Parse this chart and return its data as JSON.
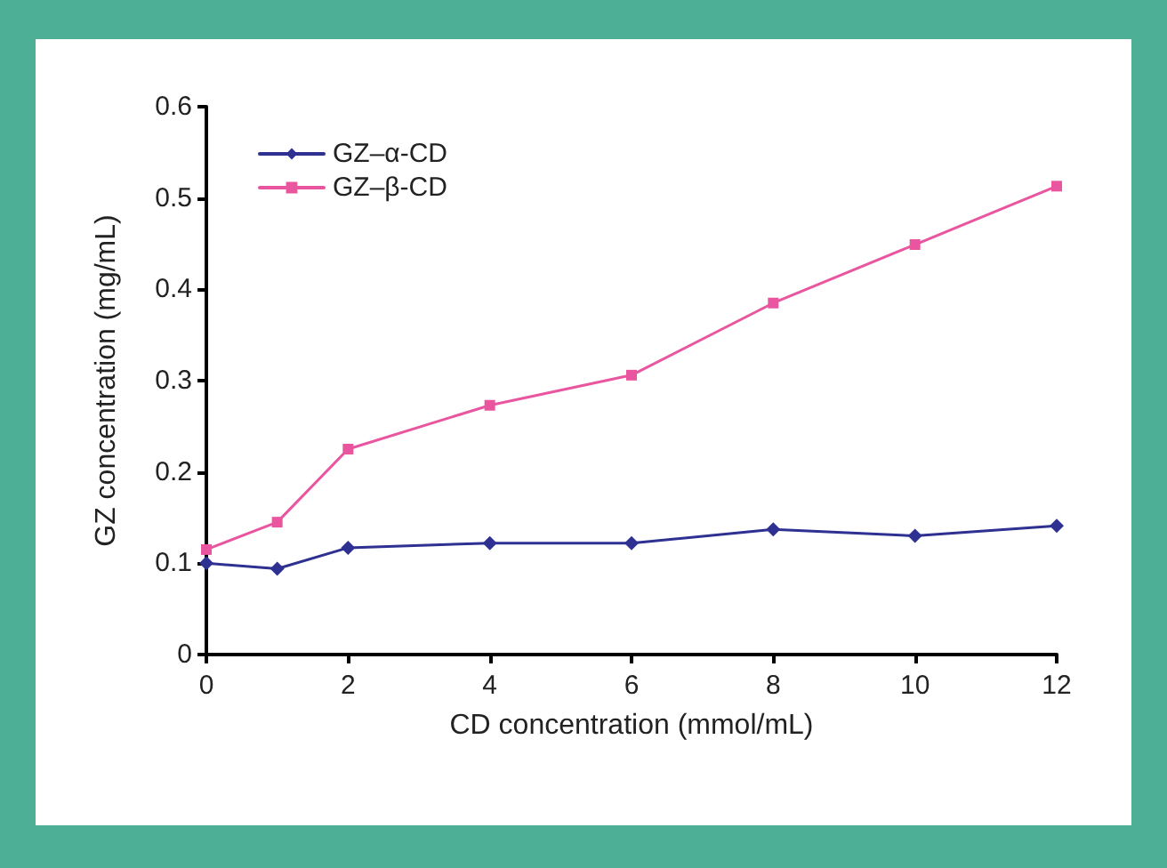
{
  "chart_data": {
    "type": "line",
    "xlabel": "CD concentration (mmol/mL)",
    "ylabel": "GZ concentration (mg/mL)",
    "x": [
      0,
      1,
      2,
      4,
      6,
      8,
      10,
      12
    ],
    "series": [
      {
        "name": "GZ–α-CD",
        "color": "#2e3192",
        "marker": "diamond",
        "values": [
          0.1,
          0.094,
          0.117,
          0.122,
          0.122,
          0.137,
          0.13,
          0.141
        ]
      },
      {
        "name": "GZ–β-CD",
        "color": "#e9559f",
        "marker": "square",
        "values": [
          0.115,
          0.145,
          0.225,
          0.273,
          0.306,
          0.385,
          0.449,
          0.513
        ]
      }
    ],
    "xlim": [
      0,
      12
    ],
    "xticks": [
      0,
      2,
      4,
      6,
      8,
      10,
      12
    ],
    "ylim": [
      0,
      0.6
    ],
    "yticks": [
      0,
      0.1,
      0.2,
      0.3,
      0.4,
      0.5,
      0.6
    ],
    "grid": false,
    "legend": "top left",
    "line_style": "solid"
  }
}
